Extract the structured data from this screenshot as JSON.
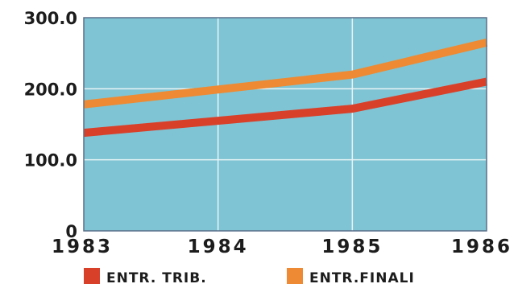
{
  "chart_data": {
    "type": "line",
    "x": [
      1983,
      1984,
      1985,
      1986
    ],
    "x_tick_labels": [
      "1983",
      "1984",
      "1985",
      "1986"
    ],
    "y_tick_labels": [
      "0",
      "100.0",
      "200.0",
      "300.0"
    ],
    "y_ticks": [
      0,
      100,
      200,
      300
    ],
    "ylim": [
      0,
      300
    ],
    "grid": true,
    "legend_position": "bottom",
    "series": [
      {
        "name": "ENTR. TRIB.",
        "x": [
          1983,
          1985,
          1986
        ],
        "values": [
          138,
          172,
          210
        ],
        "color": "#d9402a"
      },
      {
        "name": "ENTR.FINALI",
        "x": [
          1983,
          1985,
          1986
        ],
        "values": [
          178,
          220,
          265
        ],
        "color": "#ee8a33"
      }
    ],
    "colors": {
      "plot_background": "#7fc4d4",
      "grid": "#e9f4f6",
      "frame": "#5a6f8a"
    }
  }
}
